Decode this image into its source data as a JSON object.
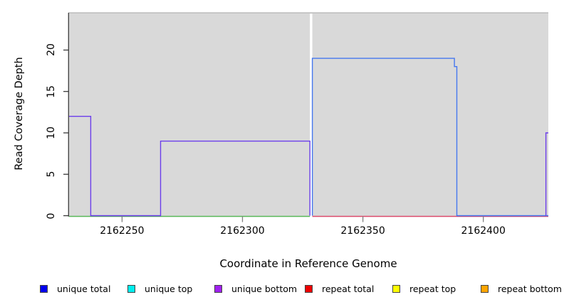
{
  "figure": {
    "y_axis": {
      "label": "Read Coverage Depth",
      "ticks": [
        "0",
        "5",
        "10",
        "15",
        "20"
      ]
    },
    "x_axis": {
      "label": "Coordinate in Reference Genome",
      "ticks": [
        "2162250",
        "2162300",
        "2162350",
        "2162400"
      ]
    },
    "legend": [
      {
        "label": "unique total",
        "color": "#0000EE"
      },
      {
        "label": "unique top",
        "color": "#00EEEE"
      },
      {
        "label": "unique bottom",
        "color": "#A020F0"
      },
      {
        "label": "repeat total",
        "color": "#EE0000"
      },
      {
        "label": "repeat top",
        "color": "#FFFF00"
      },
      {
        "label": "repeat bottom",
        "color": "#FFA500"
      }
    ]
  },
  "chart_data": {
    "type": "line",
    "title": "",
    "xlabel": "Coordinate in Reference Genome",
    "ylabel": "Read Coverage Depth",
    "xlim": [
      2162228,
      2162427
    ],
    "ylim": [
      0,
      24.5
    ],
    "x_ticks": [
      2162250,
      2162300,
      2162350,
      2162400
    ],
    "y_ticks": [
      0,
      5,
      10,
      15,
      20
    ],
    "background_color": "#d9d9d9",
    "grid": false,
    "legend_position": "bottom",
    "gap_region": {
      "x_start": 2162328,
      "x_end": 2162329,
      "color": "#ffffff"
    },
    "series": [
      {
        "name": "baseline-left-green",
        "color": "#58b858",
        "baseline": true,
        "points": [
          [
            2162228,
            0
          ],
          [
            2162328,
            0
          ]
        ]
      },
      {
        "name": "baseline-right-red",
        "color": "#dc4a6a",
        "baseline": true,
        "points": [
          [
            2162329,
            0
          ],
          [
            2162427,
            0
          ]
        ]
      },
      {
        "name": "unique-total-blue",
        "color": "#4577ef",
        "baseline": false,
        "points": [
          [
            2162329,
            0
          ],
          [
            2162329,
            19
          ],
          [
            2162388,
            19
          ],
          [
            2162388,
            18
          ],
          [
            2162389,
            18
          ],
          [
            2162389,
            0
          ],
          [
            2162427,
            0
          ]
        ]
      },
      {
        "name": "unique-bottom-purple-left",
        "color": "#6b3deb",
        "baseline": false,
        "points": [
          [
            2162228,
            12
          ],
          [
            2162237,
            12
          ],
          [
            2162237,
            0
          ],
          [
            2162266,
            0
          ],
          [
            2162266,
            9
          ],
          [
            2162328,
            9
          ],
          [
            2162328,
            0
          ]
        ]
      },
      {
        "name": "unique-bottom-purple-right-edge",
        "color": "#6b3deb",
        "baseline": false,
        "points": [
          [
            2162426,
            0
          ],
          [
            2162426,
            10
          ],
          [
            2162427,
            10
          ]
        ]
      }
    ]
  }
}
